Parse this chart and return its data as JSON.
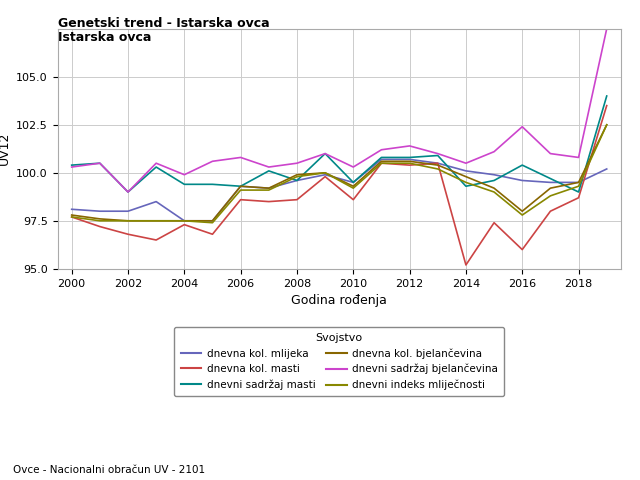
{
  "title_line1": "Genetski trend - Istarska ovca",
  "title_line2": "Istarska ovca",
  "xlabel": "Godina rođenja",
  "ylabel": "UV12",
  "legend_title": "Svojstvo",
  "footnote": "Ovce - Nacionalni obračun UV - 2101",
  "years": [
    2000,
    2001,
    2002,
    2003,
    2004,
    2005,
    2006,
    2007,
    2008,
    2009,
    2010,
    2011,
    2012,
    2013,
    2014,
    2015,
    2016,
    2017,
    2018,
    2019
  ],
  "series": {
    "dnevna kol. mlijeka": {
      "color": "#6666bb",
      "values": [
        98.1,
        98.0,
        98.0,
        98.5,
        97.5,
        97.5,
        99.3,
        99.2,
        99.6,
        99.9,
        99.5,
        100.7,
        100.7,
        100.5,
        100.1,
        99.9,
        99.6,
        99.5,
        99.5,
        100.2
      ]
    },
    "dnevna kol. masti": {
      "color": "#cc4444",
      "values": [
        97.7,
        97.2,
        96.8,
        96.5,
        97.3,
        96.8,
        98.6,
        98.5,
        98.6,
        99.8,
        98.6,
        100.5,
        100.4,
        100.5,
        95.2,
        97.4,
        96.0,
        98.0,
        98.7,
        103.5
      ]
    },
    "dnevni sadržaj masti": {
      "color": "#008888",
      "values": [
        100.4,
        100.5,
        99.0,
        100.3,
        99.4,
        99.4,
        99.3,
        100.1,
        99.6,
        101.0,
        99.5,
        100.8,
        100.8,
        100.9,
        99.3,
        99.6,
        100.4,
        99.7,
        99.0,
        104.0
      ]
    },
    "dnevna kol. bjelančevina": {
      "color": "#886600",
      "values": [
        97.8,
        97.6,
        97.5,
        97.5,
        97.5,
        97.5,
        99.3,
        99.2,
        99.9,
        100.0,
        99.3,
        100.6,
        100.6,
        100.4,
        99.8,
        99.2,
        98.0,
        99.2,
        99.5,
        102.5
      ]
    },
    "dnevni sadržaj bjelančevina": {
      "color": "#cc44cc",
      "values": [
        100.3,
        100.5,
        99.0,
        100.5,
        99.9,
        100.6,
        100.8,
        100.3,
        100.5,
        101.0,
        100.3,
        101.2,
        101.4,
        101.0,
        100.5,
        101.1,
        102.4,
        101.0,
        100.8,
        107.5
      ]
    },
    "dnevni indeks mliječnosti": {
      "color": "#888800",
      "values": [
        97.7,
        97.5,
        97.5,
        97.5,
        97.5,
        97.4,
        99.1,
        99.1,
        99.8,
        100.0,
        99.2,
        100.5,
        100.5,
        100.2,
        99.5,
        99.0,
        97.8,
        98.8,
        99.3,
        102.5
      ]
    }
  },
  "ylim": [
    95.0,
    107.5
  ],
  "yticks": [
    95.0,
    97.5,
    100.0,
    102.5,
    105.0
  ],
  "xticks": [
    2000,
    2002,
    2004,
    2006,
    2008,
    2010,
    2012,
    2014,
    2016,
    2018
  ],
  "bg_color": "#ffffff",
  "plot_bg_color": "#ffffff",
  "grid_color": "#cccccc",
  "title_fontsize": 9,
  "axis_fontsize": 8,
  "label_fontsize": 9,
  "legend_fontsize": 7.5,
  "legend_title_fontsize": 8
}
